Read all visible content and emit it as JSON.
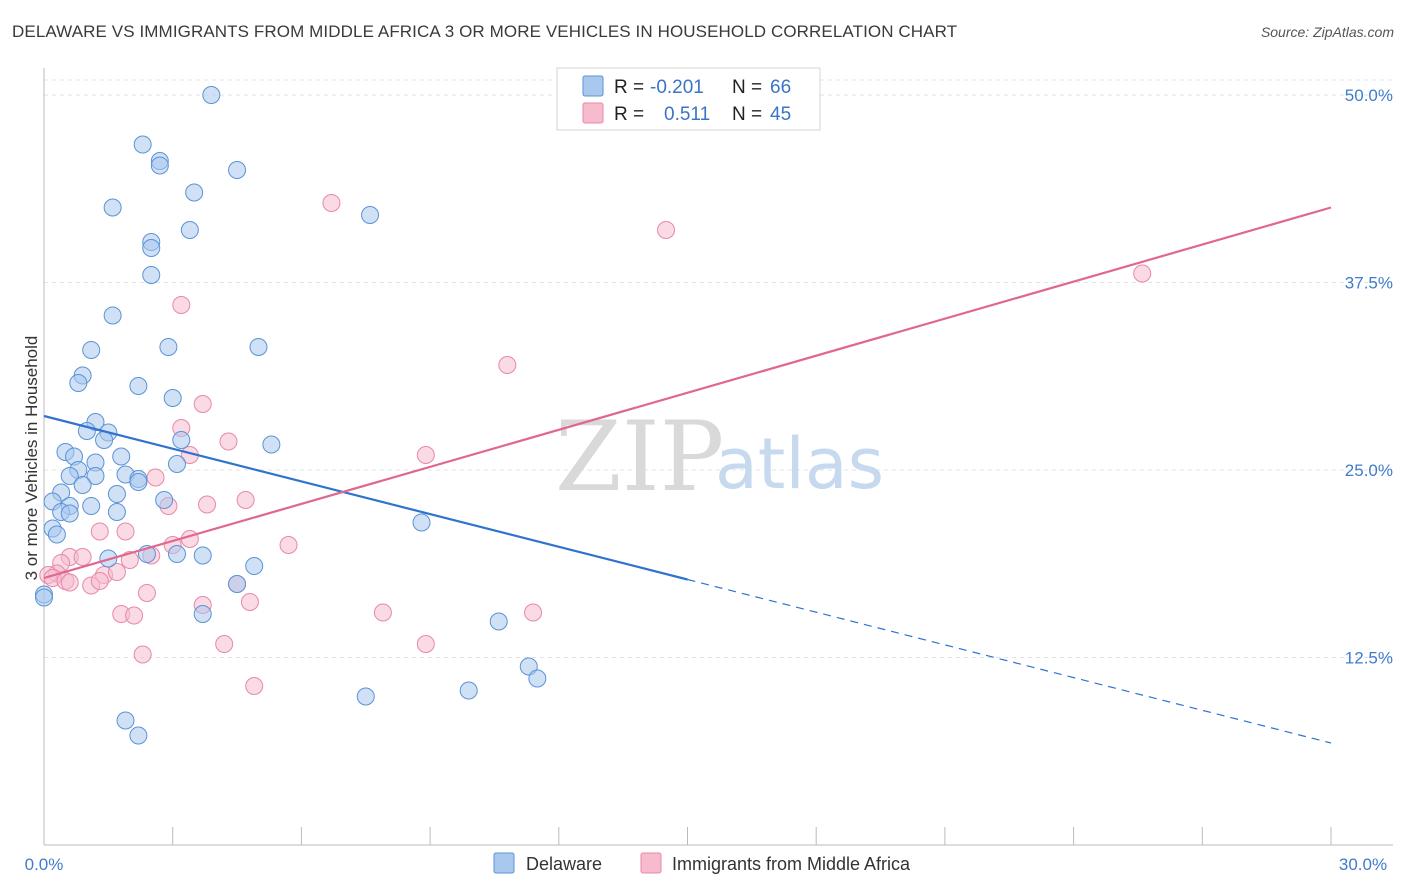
{
  "title": "DELAWARE VS IMMIGRANTS FROM MIDDLE AFRICA 3 OR MORE VEHICLES IN HOUSEHOLD CORRELATION CHART",
  "source": "Source: ZipAtlas.com",
  "watermark": {
    "zip": "ZIP",
    "atlas": "atlas"
  },
  "legend": {
    "rows": [
      {
        "r_label": "R =",
        "r_value": "-0.201",
        "n_label": "N =",
        "n_value": "66"
      },
      {
        "r_label": "R =",
        "r_value": "0.511",
        "n_label": "N =",
        "n_value": "45"
      }
    ]
  },
  "bottom_legend": [
    "Delaware",
    "Immigrants from Middle Africa"
  ],
  "colors": {
    "blue_fill": "#a9c8ee",
    "blue_stroke": "#5b93d6",
    "blue_line": "#2f73cf",
    "pink_fill": "#f6bccd",
    "pink_stroke": "#e889a8",
    "pink_line": "#e0678f",
    "grid": "#e3e3e3",
    "axis": "#bbbbbb"
  },
  "chart_data": {
    "type": "scatter",
    "title": "DELAWARE VS IMMIGRANTS FROM MIDDLE AFRICA 3 OR MORE VEHICLES IN HOUSEHOLD CORRELATION CHART",
    "xlabel": "",
    "ylabel": "3 or more Vehicles in Household",
    "xlim": [
      0,
      30
    ],
    "ylim": [
      0,
      51
    ],
    "x_tick_labels": [
      "0.0%",
      "30.0%"
    ],
    "y_ticks": [
      12.5,
      25.0,
      37.5,
      50.0
    ],
    "y_tick_labels": [
      "12.5%",
      "25.0%",
      "37.5%",
      "50.0%"
    ],
    "grid": true,
    "legend_position": "top-center",
    "series": [
      {
        "name": "Delaware",
        "r": -0.201,
        "n": 66,
        "points": [
          [
            3.9,
            50.0
          ],
          [
            2.3,
            46.7
          ],
          [
            2.7,
            45.6
          ],
          [
            2.7,
            45.3
          ],
          [
            4.5,
            45.0
          ],
          [
            1.6,
            42.5
          ],
          [
            3.5,
            43.5
          ],
          [
            7.6,
            42.0
          ],
          [
            3.4,
            41.0
          ],
          [
            2.5,
            40.2
          ],
          [
            2.5,
            39.8
          ],
          [
            2.5,
            38.0
          ],
          [
            1.6,
            35.3
          ],
          [
            2.9,
            33.2
          ],
          [
            5.0,
            33.2
          ],
          [
            1.1,
            33.0
          ],
          [
            0.9,
            31.3
          ],
          [
            0.8,
            30.8
          ],
          [
            2.2,
            30.6
          ],
          [
            3.0,
            29.8
          ],
          [
            1.2,
            28.2
          ],
          [
            1.0,
            27.6
          ],
          [
            1.5,
            27.5
          ],
          [
            1.4,
            27.0
          ],
          [
            3.2,
            27.0
          ],
          [
            5.3,
            26.7
          ],
          [
            0.5,
            26.2
          ],
          [
            0.7,
            25.9
          ],
          [
            1.8,
            25.9
          ],
          [
            1.2,
            25.5
          ],
          [
            3.1,
            25.4
          ],
          [
            0.8,
            25.0
          ],
          [
            0.6,
            24.6
          ],
          [
            1.2,
            24.6
          ],
          [
            1.9,
            24.7
          ],
          [
            2.2,
            24.4
          ],
          [
            2.2,
            24.2
          ],
          [
            0.9,
            24.0
          ],
          [
            0.4,
            23.5
          ],
          [
            1.7,
            23.4
          ],
          [
            0.2,
            22.9
          ],
          [
            2.8,
            23.0
          ],
          [
            0.6,
            22.6
          ],
          [
            1.1,
            22.6
          ],
          [
            0.4,
            22.2
          ],
          [
            0.6,
            22.1
          ],
          [
            1.7,
            22.2
          ],
          [
            0.2,
            21.1
          ],
          [
            0.3,
            20.7
          ],
          [
            8.8,
            21.5
          ],
          [
            2.4,
            19.4
          ],
          [
            3.1,
            19.4
          ],
          [
            3.7,
            19.3
          ],
          [
            1.5,
            19.1
          ],
          [
            4.9,
            18.6
          ],
          [
            4.5,
            17.4
          ],
          [
            0.0,
            16.7
          ],
          [
            3.7,
            15.4
          ],
          [
            10.6,
            14.9
          ],
          [
            11.3,
            11.9
          ],
          [
            11.5,
            11.1
          ],
          [
            7.5,
            9.9
          ],
          [
            9.9,
            10.3
          ],
          [
            1.9,
            8.3
          ],
          [
            2.2,
            7.3
          ],
          [
            0.0,
            16.5
          ]
        ]
      },
      {
        "name": "Immigrants from Middle Africa",
        "r": 0.511,
        "n": 45,
        "points": [
          [
            6.7,
            42.8
          ],
          [
            14.5,
            41.0
          ],
          [
            25.6,
            38.1
          ],
          [
            3.2,
            36.0
          ],
          [
            10.8,
            32.0
          ],
          [
            3.7,
            29.4
          ],
          [
            3.2,
            27.8
          ],
          [
            4.3,
            26.9
          ],
          [
            3.4,
            26.0
          ],
          [
            8.9,
            26.0
          ],
          [
            2.6,
            24.5
          ],
          [
            2.9,
            22.6
          ],
          [
            3.8,
            22.7
          ],
          [
            4.7,
            23.0
          ],
          [
            1.3,
            20.9
          ],
          [
            1.9,
            20.9
          ],
          [
            5.7,
            20.0
          ],
          [
            3.4,
            20.4
          ],
          [
            3.0,
            20.0
          ],
          [
            0.6,
            19.2
          ],
          [
            0.9,
            19.2
          ],
          [
            2.5,
            19.3
          ],
          [
            2.0,
            19.0
          ],
          [
            0.4,
            18.8
          ],
          [
            0.3,
            18.1
          ],
          [
            0.1,
            18.0
          ],
          [
            0.2,
            17.8
          ],
          [
            0.5,
            17.6
          ],
          [
            1.4,
            18.0
          ],
          [
            1.7,
            18.2
          ],
          [
            0.6,
            17.5
          ],
          [
            1.1,
            17.3
          ],
          [
            1.3,
            17.6
          ],
          [
            2.4,
            16.8
          ],
          [
            4.5,
            17.4
          ],
          [
            3.7,
            16.0
          ],
          [
            4.8,
            16.2
          ],
          [
            1.8,
            15.4
          ],
          [
            2.1,
            15.3
          ],
          [
            7.9,
            15.5
          ],
          [
            11.4,
            15.5
          ],
          [
            4.2,
            13.4
          ],
          [
            8.9,
            13.4
          ],
          [
            2.3,
            12.7
          ],
          [
            4.9,
            10.6
          ]
        ]
      }
    ],
    "trend_lines": [
      {
        "series": "Delaware",
        "x": [
          0,
          15
        ],
        "y": [
          28.6,
          17.7
        ],
        "dashed_extension_x": [
          15,
          30
        ],
        "dashed_extension_y": [
          17.7,
          6.8
        ]
      },
      {
        "series": "Immigrants from Middle Africa",
        "x": [
          0,
          30
        ],
        "y": [
          17.8,
          42.5
        ]
      }
    ]
  }
}
